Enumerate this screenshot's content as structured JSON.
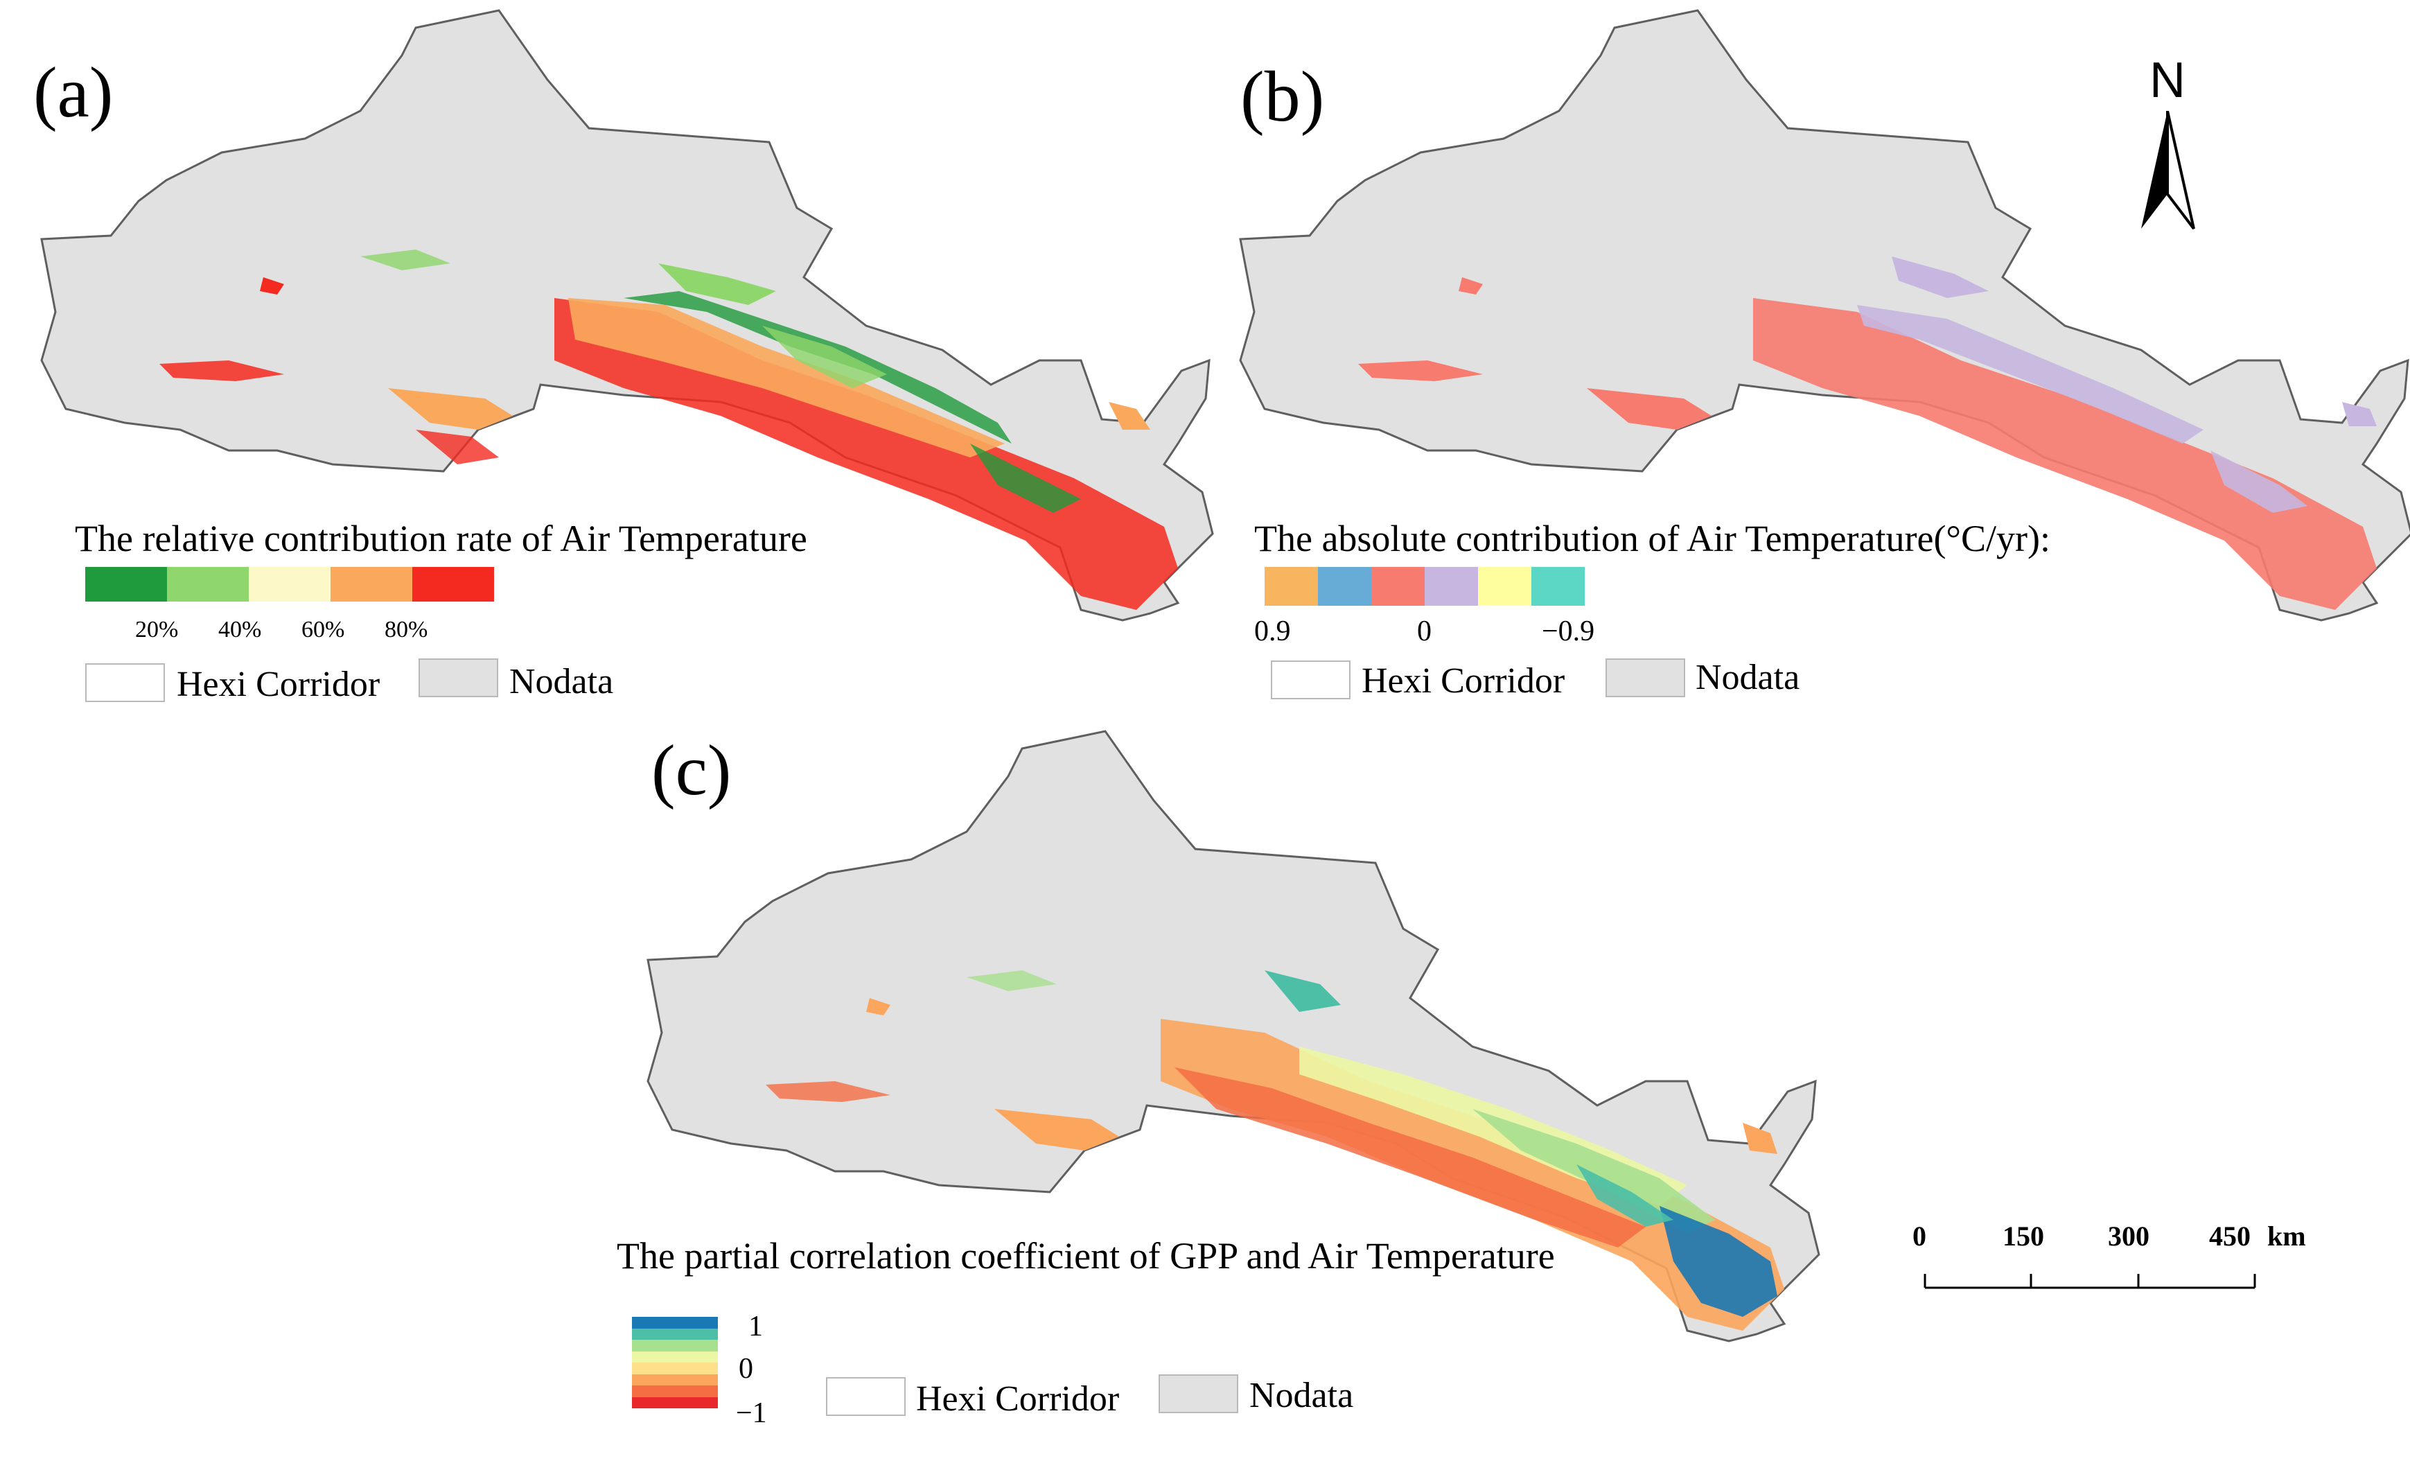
{
  "panels": {
    "a": {
      "letter": "(a)",
      "legend_title": "The relative contribution rate of Air Temperature",
      "ramp_colors": [
        "#1f9a3c",
        "#8fd66c",
        "#fdf8c8",
        "#f9a85c",
        "#f42a20"
      ],
      "ticks": [
        "20%",
        "40%",
        "60%",
        "80%"
      ],
      "hexi_label": "Hexi Corridor",
      "nodata_label": "Nodata"
    },
    "b": {
      "letter": "(b)",
      "legend_title": "The absolute contribution of Air Temperature(°C/yr):",
      "ramp_colors": [
        "#f8b55f",
        "#67acd6",
        "#f77b6f",
        "#c6b6e0",
        "#fefe9e",
        "#5cd6c5"
      ],
      "ticks": [
        "0.9",
        "0",
        "−0.9"
      ],
      "hexi_label": "Hexi Corridor",
      "nodata_label": "Nodata"
    },
    "c": {
      "letter": "(c)",
      "legend_title": "The partial correlation coefficient of GPP and Air Temperature",
      "ramp_colors": [
        "#1a78b4",
        "#4dbfa6",
        "#a7e08f",
        "#ecf7a3",
        "#fee08b",
        "#fca55d",
        "#f46d43",
        "#e8282b"
      ],
      "ticks": [
        "1",
        "0",
        "−1"
      ],
      "hexi_label": "Hexi Corridor",
      "nodata_label": "Nodata"
    }
  },
  "north_arrow": {
    "label": "N"
  },
  "scale_bar": {
    "ticks": [
      "0",
      "150",
      "300",
      "450"
    ],
    "unit": "km"
  },
  "colors": {
    "nodata": "#e1e1e1",
    "outline": "#5f5f5f"
  }
}
